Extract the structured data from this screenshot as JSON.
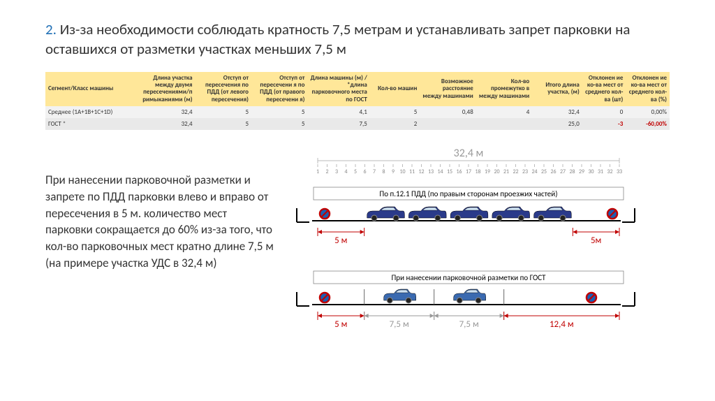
{
  "heading": {
    "num": "2.",
    "text": " Из-за необходимости соблюдать кратность 7,5 метрам и устанавливать запрет парковки на оставшихся от разметки участках меньших 7,5 м"
  },
  "table": {
    "headers": [
      "Сегмент/Класс машины",
      "Длина участка между двумя пересечениями/п римыканиями (м)",
      "Отступ от пересечения по ПДД (от левого пересечения)",
      "Отступ от пересечени я по ПДД (от правого пересечени я)",
      "Длина машины (м) / *длина парковочного места по ГОСТ",
      "Кол-во машин",
      "Возможное расстояние между машинами",
      "Кол-во промежутко в между машинами",
      "Итого длина участка, (м)",
      "Отклонен ие ко-ва мест от среднего кол-ва (шт)",
      "Отклонен ие ко-ва мест от среднего кол-ва (%)"
    ],
    "rows": [
      {
        "cells": [
          "Среднее (1A+1B+1C+1D)",
          "32,4",
          "5",
          "5",
          "4,1",
          "5",
          "0,48",
          "4",
          "32,4",
          "0",
          "0,00%"
        ],
        "neg": []
      },
      {
        "cells": [
          "ГОСТ *",
          "32,4",
          "5",
          "5",
          "7,5",
          "2",
          "",
          "",
          "25,0",
          "-3",
          "-60,00%"
        ],
        "neg": [
          9,
          10
        ]
      }
    ],
    "col_align": [
      "left",
      "right",
      "right",
      "right",
      "right",
      "right",
      "right",
      "right",
      "right",
      "right",
      "right"
    ],
    "header_bg": "#ffe799"
  },
  "paragraph": "При нанесении парковочной разметки и запрете по ПДД парковки влево и вправо от пересечения в 5 м. количество мест парковки сокращается до 60% из-за того, что кол-во парковочных мест кратно длине 7,5 м (на примере участка УДС в 32,4 м)",
  "diagram": {
    "total_len": "32,4 м",
    "ticks": [
      "1",
      "2",
      "3",
      "4",
      "5",
      "6",
      "7",
      "8",
      "9",
      "10",
      "11",
      "12",
      "13",
      "14",
      "15",
      "16",
      "17",
      "18",
      "19",
      "20",
      "21",
      "22",
      "23",
      "24",
      "25",
      "26",
      "27",
      "28",
      "29",
      "30",
      "31",
      "32",
      "33"
    ],
    "scene1": {
      "caption": "По п.12.1 ПДД (по правым сторонам проезжих частей)",
      "left": "5 м",
      "right": "5м",
      "cars": 5,
      "car_color": "#2a3a8a"
    },
    "scene2": {
      "caption": "При нанесении парковочной разметки по ГОСТ",
      "dims": [
        {
          "v": "5 м",
          "c": "red"
        },
        {
          "v": "7,5 м",
          "c": "grey"
        },
        {
          "v": "7,5 м",
          "c": "grey"
        },
        {
          "v": "12,4 м",
          "c": "red"
        }
      ],
      "cars": 2,
      "car_color": "#3a6ab0"
    },
    "sign_colors": {
      "rim": "#c00000",
      "bg": "#1a5fb4",
      "bar": "#c00000"
    }
  }
}
